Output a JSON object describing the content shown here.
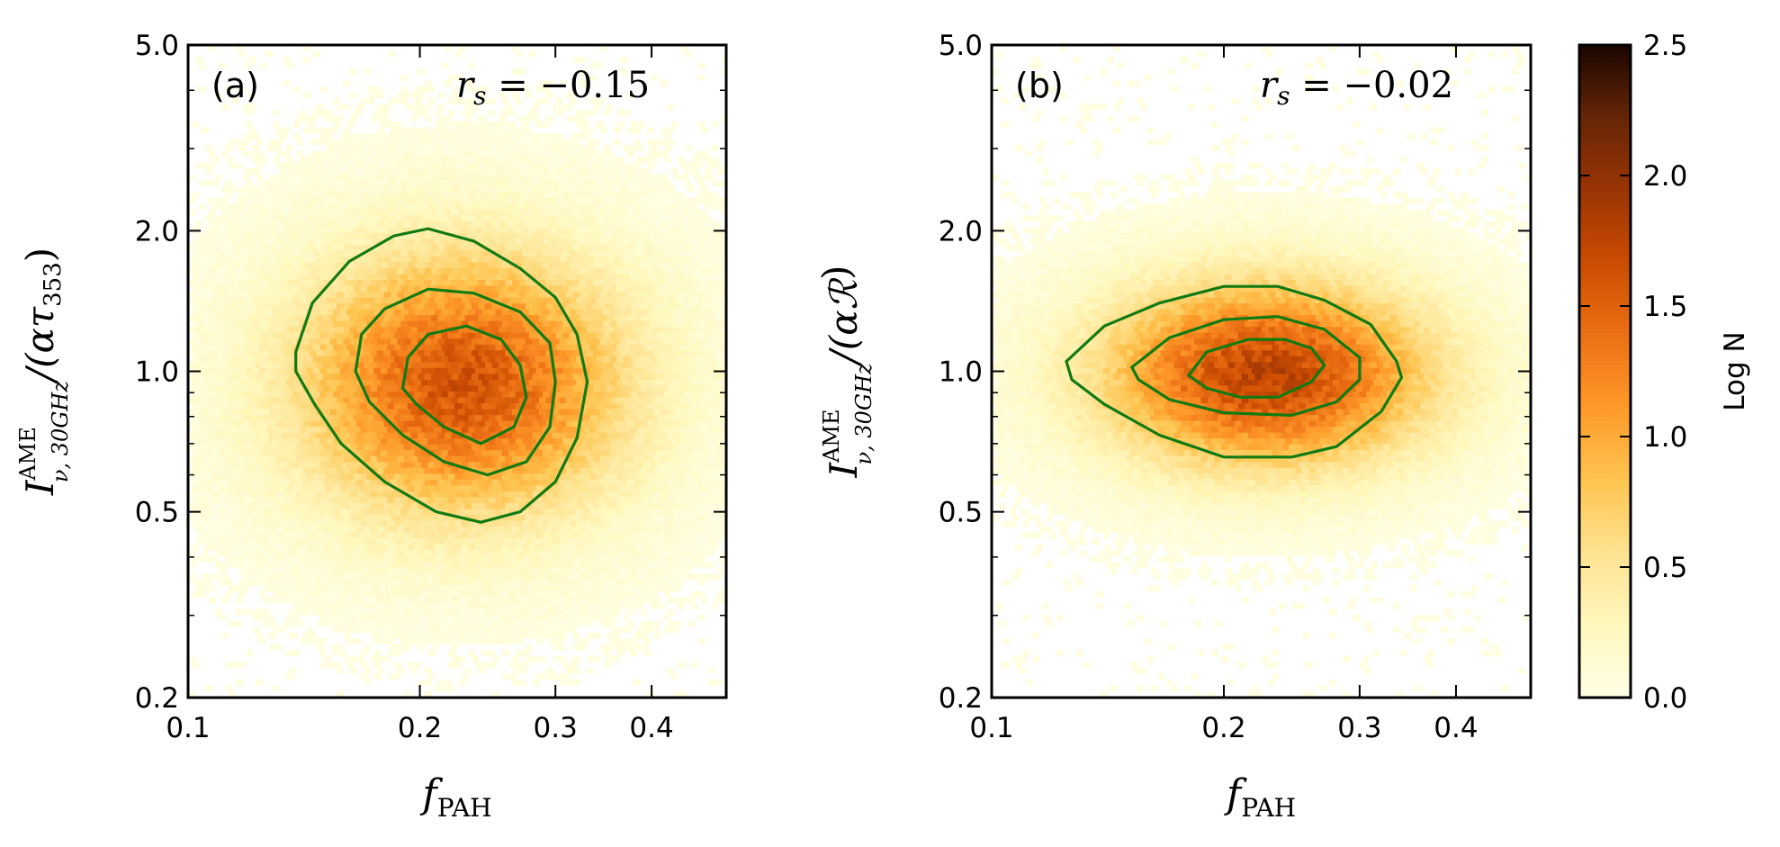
{
  "chart_data": [
    {
      "type": "heatmap",
      "subtype": "hexbin_with_contours",
      "panel_label": "(a)",
      "annotation": "r_s = −0.15",
      "annotation_parts": {
        "symbol": "r",
        "subscript": "s",
        "relation": " = −0.15"
      },
      "xlabel": {
        "base": "f",
        "subscript": "PAH"
      },
      "ylabel": {
        "base": "I",
        "superscript": "AME",
        "subscript": "ν, 30GHz",
        "denominator": "/(ατ",
        "denominator_sub": "353",
        "close": ")"
      },
      "xscale": "log",
      "yscale": "log",
      "xlim": [
        0.1,
        0.5
      ],
      "ylim": [
        0.2,
        5.0
      ],
      "xticks": [
        0.1,
        0.2,
        0.3,
        0.4
      ],
      "xtick_labels": [
        "0.1",
        "0.2",
        "0.3",
        "0.4"
      ],
      "yticks": [
        0.2,
        0.5,
        1.0,
        2.0,
        5.0
      ],
      "ytick_labels": [
        "0.2",
        "0.5",
        "1.0",
        "2.0",
        "5.0"
      ],
      "density_model": {
        "center_x": 0.225,
        "center_y": 0.95,
        "sigma_log10_x": 0.15,
        "sigma_log10_y": 0.2,
        "peak_log_n": 1.6
      },
      "contours": [
        {
          "level": "outer",
          "points": [
            [
              0.138,
              1.1
            ],
            [
              0.145,
              1.4
            ],
            [
              0.162,
              1.72
            ],
            [
              0.185,
              1.95
            ],
            [
              0.205,
              2.02
            ],
            [
              0.235,
              1.9
            ],
            [
              0.27,
              1.66
            ],
            [
              0.3,
              1.44
            ],
            [
              0.32,
              1.2
            ],
            [
              0.33,
              0.95
            ],
            [
              0.32,
              0.72
            ],
            [
              0.3,
              0.58
            ],
            [
              0.27,
              0.5
            ],
            [
              0.24,
              0.475
            ],
            [
              0.21,
              0.5
            ],
            [
              0.18,
              0.58
            ],
            [
              0.158,
              0.7
            ],
            [
              0.146,
              0.85
            ],
            [
              0.138,
              1.0
            ],
            [
              0.138,
              1.1
            ]
          ]
        },
        {
          "level": "middle",
          "points": [
            [
              0.165,
              1.0
            ],
            [
              0.168,
              1.2
            ],
            [
              0.18,
              1.36
            ],
            [
              0.205,
              1.5
            ],
            [
              0.235,
              1.47
            ],
            [
              0.27,
              1.34
            ],
            [
              0.295,
              1.15
            ],
            [
              0.3,
              0.95
            ],
            [
              0.295,
              0.76
            ],
            [
              0.275,
              0.64
            ],
            [
              0.245,
              0.6
            ],
            [
              0.215,
              0.64
            ],
            [
              0.19,
              0.73
            ],
            [
              0.172,
              0.86
            ],
            [
              0.165,
              1.0
            ]
          ]
        },
        {
          "level": "inner",
          "points": [
            [
              0.19,
              0.92
            ],
            [
              0.193,
              1.07
            ],
            [
              0.205,
              1.2
            ],
            [
              0.23,
              1.25
            ],
            [
              0.255,
              1.17
            ],
            [
              0.27,
              1.03
            ],
            [
              0.275,
              0.88
            ],
            [
              0.265,
              0.76
            ],
            [
              0.24,
              0.7
            ],
            [
              0.215,
              0.76
            ],
            [
              0.198,
              0.85
            ],
            [
              0.19,
              0.92
            ]
          ]
        }
      ]
    },
    {
      "type": "heatmap",
      "subtype": "hexbin_with_contours",
      "panel_label": "(b)",
      "annotation": "r_s = −0.02",
      "annotation_parts": {
        "symbol": "r",
        "subscript": "s",
        "relation": " = −0.02"
      },
      "xlabel": {
        "base": "f",
        "subscript": "PAH"
      },
      "ylabel": {
        "base": "I",
        "superscript": "AME",
        "subscript": "ν, 30GHz",
        "denominator": "/(αℛ",
        "denominator_sub": "",
        "close": ")"
      },
      "xscale": "log",
      "yscale": "log",
      "xlim": [
        0.1,
        0.5
      ],
      "ylim": [
        0.2,
        5.0
      ],
      "xticks": [
        0.1,
        0.2,
        0.3,
        0.4
      ],
      "xtick_labels": [
        "0.1",
        "0.2",
        "0.3",
        "0.4"
      ],
      "yticks": [
        0.2,
        0.5,
        1.0,
        2.0,
        5.0
      ],
      "ytick_labels": [
        "0.2",
        "0.5",
        "1.0",
        "2.0",
        "5.0"
      ],
      "density_model": {
        "center_x": 0.225,
        "center_y": 1.0,
        "sigma_log10_x": 0.15,
        "sigma_log10_y": 0.14,
        "peak_log_n": 1.75
      },
      "contours": [
        {
          "level": "outer",
          "points": [
            [
              0.125,
              1.05
            ],
            [
              0.14,
              1.25
            ],
            [
              0.165,
              1.4
            ],
            [
              0.2,
              1.52
            ],
            [
              0.235,
              1.52
            ],
            [
              0.27,
              1.42
            ],
            [
              0.31,
              1.26
            ],
            [
              0.335,
              1.05
            ],
            [
              0.34,
              0.97
            ],
            [
              0.32,
              0.82
            ],
            [
              0.28,
              0.69
            ],
            [
              0.245,
              0.655
            ],
            [
              0.2,
              0.655
            ],
            [
              0.165,
              0.73
            ],
            [
              0.14,
              0.85
            ],
            [
              0.127,
              0.96
            ],
            [
              0.125,
              1.05
            ]
          ]
        },
        {
          "level": "middle",
          "points": [
            [
              0.152,
              1.02
            ],
            [
              0.17,
              1.18
            ],
            [
              0.2,
              1.29
            ],
            [
              0.235,
              1.31
            ],
            [
              0.27,
              1.23
            ],
            [
              0.3,
              1.07
            ],
            [
              0.3,
              0.96
            ],
            [
              0.28,
              0.86
            ],
            [
              0.245,
              0.805
            ],
            [
              0.2,
              0.815
            ],
            [
              0.17,
              0.87
            ],
            [
              0.155,
              0.96
            ],
            [
              0.152,
              1.02
            ]
          ]
        },
        {
          "level": "inner",
          "points": [
            [
              0.18,
              0.98
            ],
            [
              0.19,
              1.1
            ],
            [
              0.215,
              1.17
            ],
            [
              0.24,
              1.17
            ],
            [
              0.26,
              1.12
            ],
            [
              0.27,
              1.03
            ],
            [
              0.26,
              0.95
            ],
            [
              0.235,
              0.88
            ],
            [
              0.21,
              0.88
            ],
            [
              0.19,
              0.92
            ],
            [
              0.18,
              0.98
            ]
          ]
        }
      ]
    }
  ],
  "colorbar": {
    "label": "Log N",
    "range": [
      0.0,
      2.5
    ],
    "ticks": [
      0.0,
      0.5,
      1.0,
      1.5,
      2.0,
      2.5
    ],
    "tick_labels": [
      "0.0",
      "0.5",
      "1.0",
      "1.5",
      "2.0",
      "2.5"
    ],
    "colormap": [
      "#ffffe5",
      "#fff7bc",
      "#fee391",
      "#fec44f",
      "#fe9929",
      "#ec7014",
      "#cc4c02",
      "#993404",
      "#662506",
      "#1a0500"
    ]
  },
  "colors": {
    "contour": "#117a11",
    "axes": "#000000",
    "background": "#ffffff"
  }
}
